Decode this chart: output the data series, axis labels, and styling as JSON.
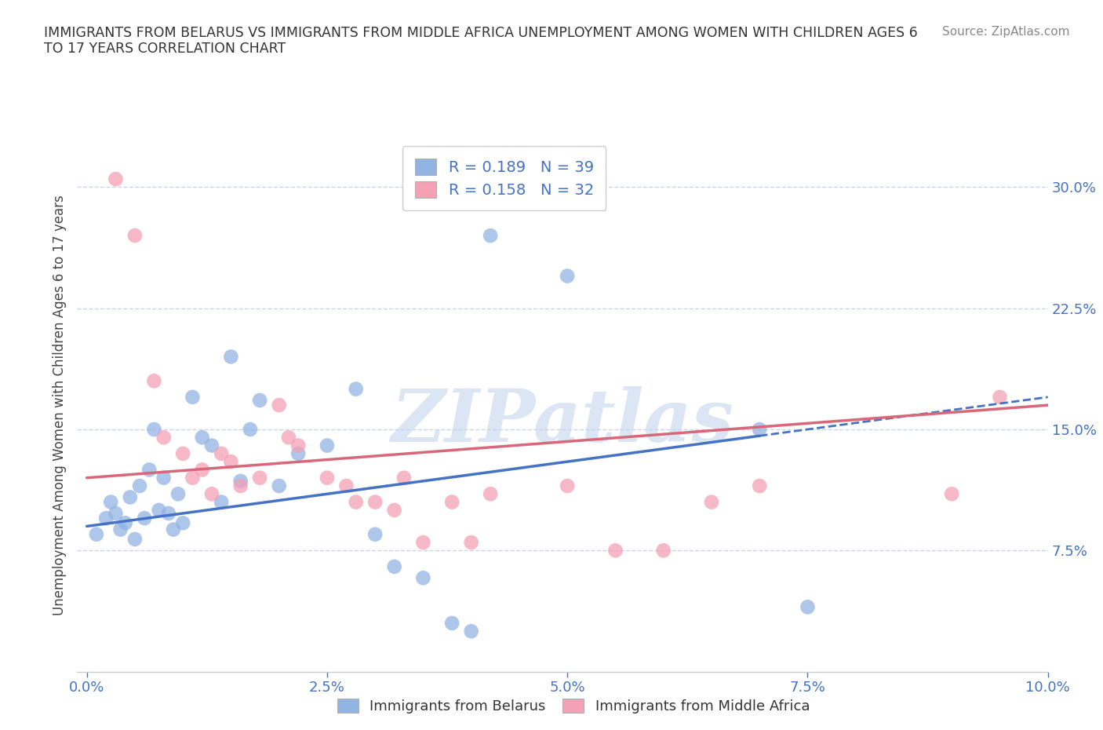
{
  "title": "IMMIGRANTS FROM BELARUS VS IMMIGRANTS FROM MIDDLE AFRICA UNEMPLOYMENT AMONG WOMEN WITH CHILDREN AGES 6\nTO 17 YEARS CORRELATION CHART",
  "source": "Source: ZipAtlas.com",
  "ylabel": "Unemployment Among Women with Children Ages 6 to 17 years",
  "xlabel_ticks": [
    "0.0%",
    "2.5%",
    "5.0%",
    "7.5%",
    "10.0%"
  ],
  "xlabel_vals": [
    0.0,
    2.5,
    5.0,
    7.5,
    10.0
  ],
  "right_ytick_labels": [
    "7.5%",
    "15.0%",
    "22.5%",
    "30.0%"
  ],
  "right_ytick_vals": [
    7.5,
    15.0,
    22.5,
    30.0
  ],
  "ylim": [
    0.0,
    33.0
  ],
  "xlim": [
    -0.1,
    10.0
  ],
  "R_belarus": 0.189,
  "N_belarus": 39,
  "R_midafrica": 0.158,
  "N_midafrica": 32,
  "color_belarus": "#92b4e3",
  "color_midafrica": "#f4a0b5",
  "color_text_blue": "#4472c4",
  "color_text_pink": "#d9677a",
  "background_color": "#ffffff",
  "grid_color": "#c8d4e8",
  "watermark_text": "ZIPatlas",
  "belarus_x": [
    0.1,
    0.2,
    0.25,
    0.3,
    0.35,
    0.4,
    0.45,
    0.5,
    0.55,
    0.6,
    0.65,
    0.7,
    0.75,
    0.8,
    0.85,
    0.9,
    0.95,
    1.0,
    1.1,
    1.2,
    1.3,
    1.4,
    1.5,
    1.6,
    1.7,
    1.8,
    2.0,
    2.2,
    2.5,
    2.8,
    3.0,
    3.2,
    3.5,
    3.8,
    4.0,
    4.2,
    5.0,
    7.0,
    7.5
  ],
  "belarus_y": [
    8.5,
    9.5,
    10.5,
    9.8,
    8.8,
    9.2,
    10.8,
    8.2,
    11.5,
    9.5,
    12.5,
    15.0,
    10.0,
    12.0,
    9.8,
    8.8,
    11.0,
    9.2,
    17.0,
    14.5,
    14.0,
    10.5,
    19.5,
    11.8,
    15.0,
    16.8,
    11.5,
    13.5,
    14.0,
    17.5,
    8.5,
    6.5,
    5.8,
    3.0,
    2.5,
    27.0,
    24.5,
    15.0,
    4.0
  ],
  "midafrica_x": [
    0.3,
    0.5,
    0.7,
    0.8,
    1.0,
    1.1,
    1.2,
    1.3,
    1.4,
    1.5,
    1.6,
    1.8,
    2.0,
    2.1,
    2.2,
    2.5,
    2.7,
    2.8,
    3.0,
    3.2,
    3.3,
    3.5,
    3.8,
    4.0,
    4.2,
    5.0,
    5.5,
    6.0,
    6.5,
    7.0,
    9.0,
    9.5
  ],
  "midafrica_y": [
    30.5,
    27.0,
    18.0,
    14.5,
    13.5,
    12.0,
    12.5,
    11.0,
    13.5,
    13.0,
    11.5,
    12.0,
    16.5,
    14.5,
    14.0,
    12.0,
    11.5,
    10.5,
    10.5,
    10.0,
    12.0,
    8.0,
    10.5,
    8.0,
    11.0,
    11.5,
    7.5,
    7.5,
    10.5,
    11.5,
    11.0,
    17.0
  ],
  "trend_belarus": [
    0.0,
    10.0,
    9.0,
    17.0
  ],
  "trend_midafrica": [
    0.0,
    10.0,
    12.0,
    16.5
  ],
  "trend_dash_start": 7.0
}
